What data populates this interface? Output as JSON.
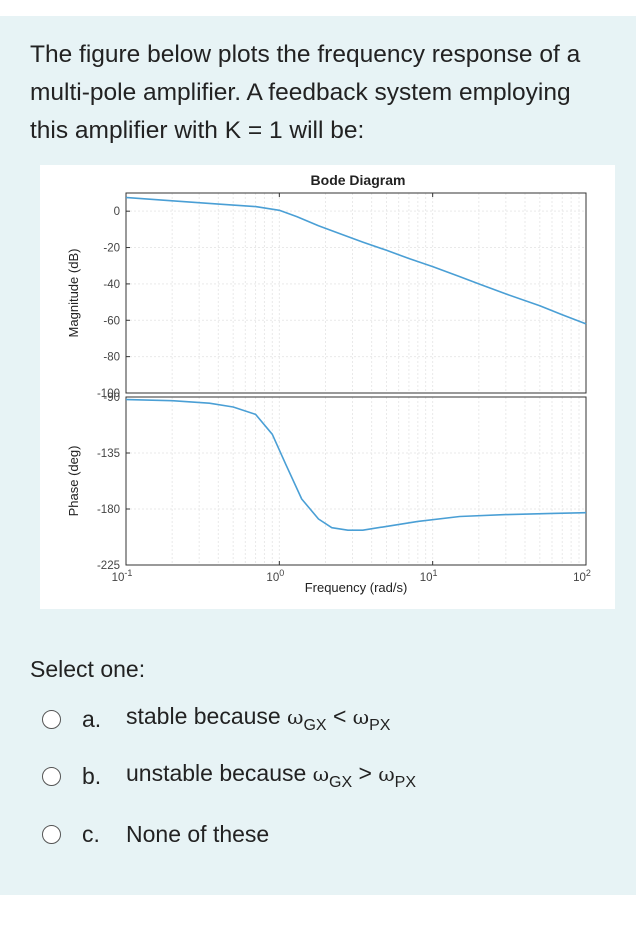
{
  "question": "The figure below plots the frequency response of a multi-pole amplifier. A feedback system employing this amplifier with K = 1 will be:",
  "select_label": "Select one:",
  "options": [
    {
      "letter": "a.",
      "prefix": "stable because ",
      "left_sym": "ω",
      "left_sub": "GX",
      "op": " < ",
      "right_sym": "ω",
      "right_sub": "PX"
    },
    {
      "letter": "b.",
      "prefix": "unstable because ",
      "left_sym": "ω",
      "left_sub": "GX",
      "op": " > ",
      "right_sym": "ω",
      "right_sub": "PX"
    },
    {
      "letter": "c.",
      "text": "None of these"
    }
  ],
  "chart_data": [
    {
      "type": "line",
      "title": "Bode Diagram",
      "ylabel": "Magnitude (dB)",
      "x_scale": "log",
      "xlim": [
        0.1,
        100
      ],
      "ylim": [
        -100,
        10
      ],
      "y_ticks": [
        "0",
        "-20",
        "-40",
        "-60",
        "-80",
        "-100"
      ],
      "grid": true,
      "x": [
        0.1,
        0.2,
        0.4,
        0.7,
        1.0,
        1.3,
        1.8,
        2.5,
        3.5,
        5,
        7,
        10,
        15,
        20,
        30,
        50,
        70,
        100
      ],
      "series": [
        {
          "values": [
            7.5,
            5.7,
            3.9,
            2.5,
            0.5,
            -3,
            -8,
            -12.5,
            -17,
            -21.5,
            -26,
            -30.5,
            -36,
            -40,
            -45.5,
            -52,
            -57,
            -62
          ]
        }
      ],
      "color": "#4a9fd5"
    },
    {
      "type": "line",
      "ylabel": "Phase (deg)",
      "xlabel": "Frequency (rad/s)",
      "x_scale": "log",
      "xlim": [
        0.1,
        100
      ],
      "ylim": [
        -225,
        -90
      ],
      "y_ticks": [
        "-90",
        "-135",
        "-180",
        "-225"
      ],
      "x_ticks": [
        {
          "base": "10",
          "exp": "-1"
        },
        {
          "base": "10",
          "exp": "0"
        },
        {
          "base": "10",
          "exp": "1"
        },
        {
          "base": "10",
          "exp": "2"
        }
      ],
      "grid": true,
      "x": [
        0.1,
        0.2,
        0.35,
        0.5,
        0.7,
        0.9,
        1.1,
        1.4,
        1.8,
        2.2,
        2.8,
        3.5,
        5,
        8,
        15,
        30,
        60,
        100
      ],
      "series": [
        {
          "values": [
            -92,
            -93,
            -95,
            -98,
            -104,
            -120,
            -144,
            -172,
            -188,
            -195,
            -197,
            -197,
            -194,
            -190,
            -186,
            -184.5,
            -183.5,
            -183
          ]
        }
      ],
      "color": "#4a9fd5"
    }
  ]
}
